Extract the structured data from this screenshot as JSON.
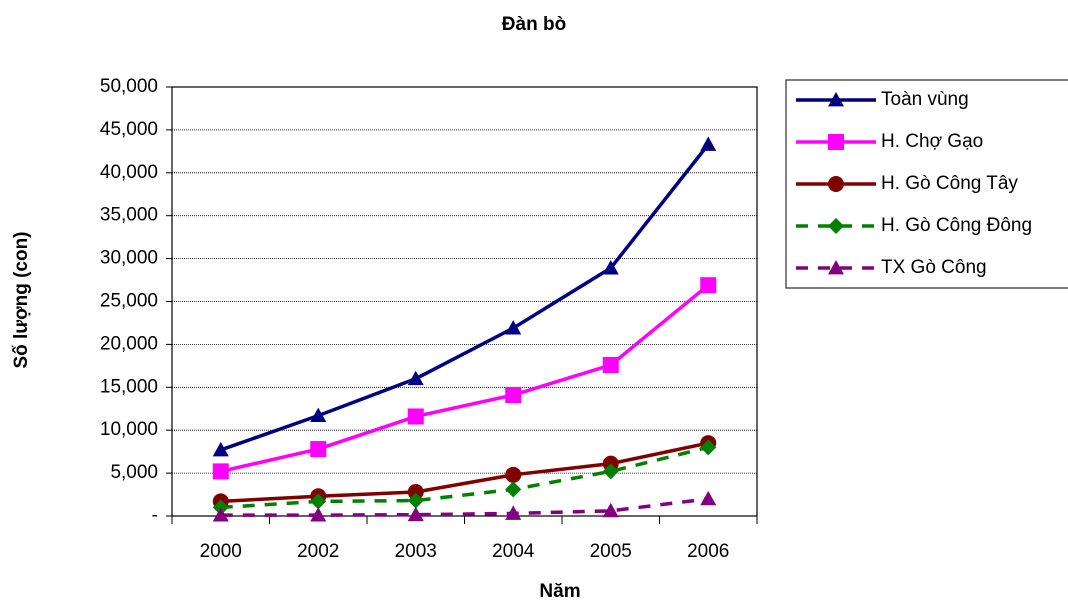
{
  "chart_data": {
    "type": "line",
    "title": "Đàn bò",
    "x_label": "Năm",
    "y_label": "Số lượng (con)",
    "categories": [
      "2000",
      "2002",
      "2003",
      "2004",
      "2005",
      "2006"
    ],
    "series": [
      {
        "name": "Toàn vùng",
        "color": "#000080",
        "marker": "triangle",
        "dashed": false,
        "values": [
          7700,
          11700,
          16000,
          21900,
          28900,
          43300
        ]
      },
      {
        "name": "H. Chợ Gạo",
        "color": "#ff00ff",
        "marker": "square",
        "dashed": false,
        "values": [
          5200,
          7800,
          11600,
          14100,
          17600,
          26900
        ]
      },
      {
        "name": "H. Gò Công Tây",
        "color": "#800000",
        "marker": "circle",
        "dashed": false,
        "values": [
          1700,
          2300,
          2800,
          4800,
          6100,
          8500
        ]
      },
      {
        "name": "H. Gò Công Đông",
        "color": "#008000",
        "marker": "diamond",
        "dashed": true,
        "values": [
          1000,
          1700,
          1800,
          3100,
          5200,
          8000
        ]
      },
      {
        "name": "TX Gò Công",
        "color": "#800080",
        "marker": "triangle",
        "dashed": true,
        "values": [
          100,
          100,
          150,
          300,
          600,
          2000
        ]
      }
    ],
    "ylim": [
      0,
      50000
    ],
    "yticks": [
      {
        "value": 0,
        "label": "-"
      },
      {
        "value": 5000,
        "label": "5,000"
      },
      {
        "value": 10000,
        "label": "10,000"
      },
      {
        "value": 15000,
        "label": "15,000"
      },
      {
        "value": 20000,
        "label": "20,000"
      },
      {
        "value": 25000,
        "label": "25,000"
      },
      {
        "value": 30000,
        "label": "30,000"
      },
      {
        "value": 35000,
        "label": "35,000"
      },
      {
        "value": 40000,
        "label": "40,000"
      },
      {
        "value": 45000,
        "label": "45,000"
      },
      {
        "value": 50000,
        "label": "50,000"
      }
    ],
    "grid": true,
    "legend": "right"
  }
}
